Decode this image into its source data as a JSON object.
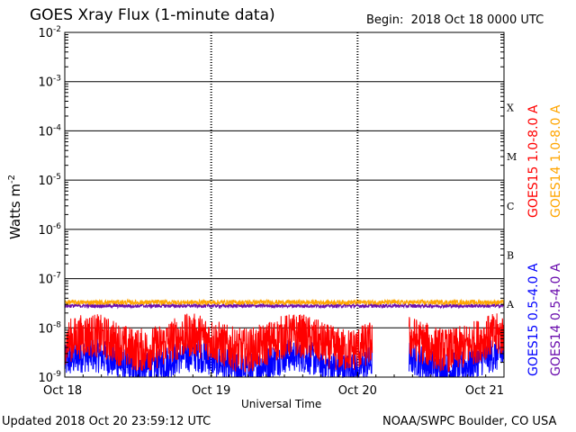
{
  "header": {
    "title": "GOES Xray Flux (1-minute data)",
    "begin_label": "Begin:",
    "begin_value": "2018 Oct 18 0000 UTC"
  },
  "footer": {
    "updated": "Updated 2018 Oct 20 23:59:12 UTC",
    "credit": "NOAA/SWPC Boulder, CO USA"
  },
  "chart_data": {
    "type": "line",
    "title": "GOES Xray Flux (1-minute data)",
    "xlabel": "Universal Time",
    "ylabel_base": "Watts m",
    "ylabel_exp": "-2",
    "y_scale": "log",
    "ylim": [
      1e-09,
      0.01
    ],
    "x_ticks": [
      "Oct 18",
      "Oct 19",
      "Oct 20",
      "Oct 21"
    ],
    "y_ticks": [
      {
        "base": "10",
        "exp": "-9",
        "value": 1e-09
      },
      {
        "base": "10",
        "exp": "-8",
        "value": 1e-08
      },
      {
        "base": "10",
        "exp": "-7",
        "value": 1e-07
      },
      {
        "base": "10",
        "exp": "-6",
        "value": 1e-06
      },
      {
        "base": "10",
        "exp": "-5",
        "value": 1e-05
      },
      {
        "base": "10",
        "exp": "-4",
        "value": 0.0001
      },
      {
        "base": "10",
        "exp": "-3",
        "value": 0.001
      },
      {
        "base": "10",
        "exp": "-2",
        "value": 0.01
      }
    ],
    "flare_classes": [
      {
        "label": "A",
        "value": 3e-08
      },
      {
        "label": "B",
        "value": 3e-07
      },
      {
        "label": "C",
        "value": 3e-06
      },
      {
        "label": "M",
        "value": 3e-05
      },
      {
        "label": "X",
        "value": 0.0003
      }
    ],
    "grid": true,
    "series": [
      {
        "name": "GOES15 1.0-8.0 A",
        "color": "#ff0000",
        "level": 5e-09,
        "noise_decades": 0.45,
        "gap": [
          2.1,
          2.35
        ]
      },
      {
        "name": "GOES14 1.0-8.0 A",
        "color": "#ffa500",
        "level": 3.3e-08,
        "noise_decades": 0.05
      },
      {
        "name": "GOES15 0.5-4.0 A",
        "color": "#0000ff",
        "level": 2e-09,
        "noise_decades": 0.35,
        "gap": [
          2.1,
          2.35
        ]
      },
      {
        "name": "GOES14 0.5-4.0 A",
        "color": "#6a0dad",
        "level": 2.8e-08,
        "noise_decades": 0.04
      }
    ]
  }
}
